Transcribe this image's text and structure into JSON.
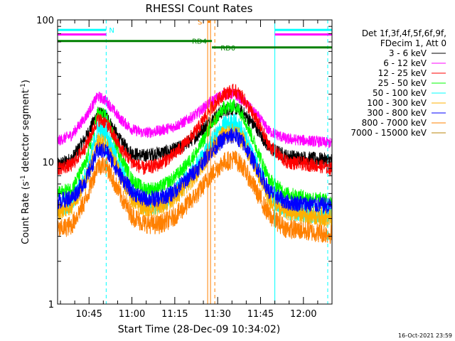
{
  "chart_data": {
    "type": "line",
    "title": "RHESSI Count Rates",
    "xlabel": "Start Time (28-Dec-09 10:34:02)",
    "ylabel_main": "Count Rate (s",
    "ylabel_sup1": "-1",
    "ylabel_mid": " detector segment",
    "ylabel_sup2": "-1",
    "ylabel_end": ")",
    "y_scale": "log",
    "ylim": [
      1,
      100
    ],
    "xlim_minutes": [
      0,
      96
    ],
    "x_ticks": [
      {
        "label": "10:45",
        "minute": 11
      },
      {
        "label": "11:00",
        "minute": 26
      },
      {
        "label": "11:15",
        "minute": 41
      },
      {
        "label": "11:30",
        "minute": 56
      },
      {
        "label": "11:45",
        "minute": 71
      },
      {
        "label": "12:00",
        "minute": 86
      }
    ],
    "y_ticks": [
      {
        "label": "1",
        "value": 1
      },
      {
        "label": "10",
        "value": 10
      },
      {
        "label": "100",
        "value": 100
      }
    ],
    "legend_header": [
      "Det 1f,3f,4f,5f,6f,9f,",
      "FDecim 1, Att 0"
    ],
    "series": [
      {
        "name": "3 - 6 keV",
        "color": "#000000",
        "noise": 0.05,
        "points": [
          [
            0,
            9.5
          ],
          [
            5,
            10.5
          ],
          [
            10,
            15
          ],
          [
            14,
            22
          ],
          [
            17,
            21
          ],
          [
            22,
            14
          ],
          [
            26,
            11.5
          ],
          [
            30,
            11
          ],
          [
            35,
            11.5
          ],
          [
            40,
            12
          ],
          [
            44,
            13
          ],
          [
            49,
            15.5
          ],
          [
            53,
            19
          ],
          [
            58,
            23
          ],
          [
            62,
            24
          ],
          [
            65,
            22
          ],
          [
            70,
            17
          ],
          [
            74,
            12.5
          ],
          [
            80,
            11
          ],
          [
            90,
            10.5
          ],
          [
            96,
            10.3
          ]
        ]
      },
      {
        "name": "6 - 12 keV",
        "color": "#ff00ff",
        "noise": 0.04,
        "points": [
          [
            0,
            14
          ],
          [
            5,
            15.5
          ],
          [
            10,
            21
          ],
          [
            14,
            29
          ],
          [
            17,
            27
          ],
          [
            22,
            20
          ],
          [
            26,
            17
          ],
          [
            30,
            16
          ],
          [
            35,
            16.5
          ],
          [
            40,
            17.5
          ],
          [
            44,
            19
          ],
          [
            49,
            22
          ],
          [
            53,
            26
          ],
          [
            58,
            30
          ],
          [
            62,
            30
          ],
          [
            65,
            27
          ],
          [
            70,
            21
          ],
          [
            74,
            16.5
          ],
          [
            80,
            14.5
          ],
          [
            90,
            14
          ],
          [
            96,
            13.5
          ]
        ]
      },
      {
        "name": "12 - 25 keV",
        "color": "#ff0000",
        "noise": 0.05,
        "points": [
          [
            0,
            9
          ],
          [
            5,
            9.5
          ],
          [
            10,
            13
          ],
          [
            14,
            20
          ],
          [
            17,
            19
          ],
          [
            22,
            12.5
          ],
          [
            26,
            10
          ],
          [
            30,
            9
          ],
          [
            35,
            9.5
          ],
          [
            40,
            11
          ],
          [
            44,
            13
          ],
          [
            49,
            17
          ],
          [
            53,
            23
          ],
          [
            58,
            30
          ],
          [
            62,
            32
          ],
          [
            65,
            28
          ],
          [
            70,
            19
          ],
          [
            74,
            13
          ],
          [
            80,
            10
          ],
          [
            90,
            9.5
          ],
          [
            96,
            9
          ]
        ]
      },
      {
        "name": "25 - 50 keV",
        "color": "#00ff00",
        "noise": 0.05,
        "points": [
          [
            0,
            6
          ],
          [
            5,
            6.5
          ],
          [
            10,
            10
          ],
          [
            14,
            22
          ],
          [
            17,
            21
          ],
          [
            22,
            11
          ],
          [
            26,
            7.5
          ],
          [
            30,
            6.5
          ],
          [
            35,
            6.5
          ],
          [
            40,
            7.5
          ],
          [
            44,
            9
          ],
          [
            49,
            12
          ],
          [
            53,
            17
          ],
          [
            58,
            24
          ],
          [
            62,
            25
          ],
          [
            65,
            21
          ],
          [
            70,
            12
          ],
          [
            74,
            7.5
          ],
          [
            80,
            6
          ],
          [
            90,
            5.5
          ],
          [
            96,
            5.3
          ]
        ]
      },
      {
        "name": "50 - 100 keV",
        "color": "#00ffff",
        "noise": 0.07,
        "points": [
          [
            0,
            4.8
          ],
          [
            5,
            5.2
          ],
          [
            10,
            8
          ],
          [
            14,
            17
          ],
          [
            17,
            16
          ],
          [
            22,
            9
          ],
          [
            26,
            6
          ],
          [
            30,
            5
          ],
          [
            35,
            5
          ],
          [
            40,
            5.8
          ],
          [
            44,
            7
          ],
          [
            49,
            9.5
          ],
          [
            53,
            13
          ],
          [
            58,
            18
          ],
          [
            62,
            19
          ],
          [
            65,
            16
          ],
          [
            70,
            9.5
          ],
          [
            74,
            6
          ],
          [
            80,
            4.6
          ],
          [
            90,
            4.3
          ],
          [
            96,
            4.2
          ]
        ]
      },
      {
        "name": "100 - 300 keV",
        "color": "#ffb000",
        "noise": 0.07,
        "points": [
          [
            0,
            4.5
          ],
          [
            5,
            5
          ],
          [
            10,
            7.5
          ],
          [
            14,
            14
          ],
          [
            17,
            13
          ],
          [
            22,
            8
          ],
          [
            26,
            5.5
          ],
          [
            30,
            4.8
          ],
          [
            35,
            4.8
          ],
          [
            40,
            5.5
          ],
          [
            44,
            6.5
          ],
          [
            49,
            8.5
          ],
          [
            53,
            11.5
          ],
          [
            58,
            15.5
          ],
          [
            62,
            16
          ],
          [
            65,
            14
          ],
          [
            70,
            8.5
          ],
          [
            74,
            5.5
          ],
          [
            80,
            4.5
          ],
          [
            90,
            4.2
          ],
          [
            96,
            4
          ]
        ]
      },
      {
        "name": "300 - 800 keV",
        "color": "#0000ff",
        "noise": 0.06,
        "points": [
          [
            0,
            5.3
          ],
          [
            5,
            5.6
          ],
          [
            10,
            7.5
          ],
          [
            14,
            12
          ],
          [
            17,
            12
          ],
          [
            22,
            8
          ],
          [
            26,
            6.2
          ],
          [
            30,
            5.5
          ],
          [
            35,
            5.5
          ],
          [
            40,
            6
          ],
          [
            44,
            7.2
          ],
          [
            49,
            9
          ],
          [
            53,
            11.5
          ],
          [
            58,
            14.5
          ],
          [
            62,
            15.5
          ],
          [
            65,
            13.5
          ],
          [
            70,
            9
          ],
          [
            74,
            6.2
          ],
          [
            80,
            5.2
          ],
          [
            90,
            5
          ],
          [
            96,
            4.9
          ]
        ]
      },
      {
        "name": "800 - 7000 keV",
        "color": "#ff8000",
        "noise": 0.07,
        "points": [
          [
            0,
            3.3
          ],
          [
            5,
            3.6
          ],
          [
            10,
            5.5
          ],
          [
            14,
            9.5
          ],
          [
            17,
            9.5
          ],
          [
            22,
            5.8
          ],
          [
            26,
            4.2
          ],
          [
            30,
            3.7
          ],
          [
            35,
            3.6
          ],
          [
            40,
            4
          ],
          [
            44,
            4.7
          ],
          [
            49,
            6
          ],
          [
            53,
            7.8
          ],
          [
            58,
            10
          ],
          [
            62,
            10.5
          ],
          [
            65,
            9.2
          ],
          [
            70,
            6
          ],
          [
            74,
            4.2
          ],
          [
            80,
            3.4
          ],
          [
            90,
            3.2
          ],
          [
            96,
            3.1
          ]
        ]
      },
      {
        "name": "7000 - 15000 keV",
        "color": "#b8860b",
        "noise": 0.05,
        "points": []
      }
    ],
    "annotations": {
      "states": [
        {
          "label": "N",
          "color": "#00ffff",
          "segments": [
            [
              0,
              17
            ],
            [
              76,
              96
            ]
          ],
          "value": 85,
          "label_at": 18
        },
        {
          "label": "S",
          "color": "#ff8000",
          "segments": [
            [
              52.5,
              53.5
            ]
          ],
          "value": 97,
          "label_at": 49
        },
        {
          "label": "RD4",
          "color": "#008000",
          "segments": [
            [
              0,
              54
            ]
          ],
          "value": 71,
          "label_at": 47
        },
        {
          "label": "RD0",
          "color": "#008000",
          "segments": [
            [
              54,
              96
            ]
          ],
          "value": 64,
          "label_at": 57
        }
      ],
      "vertical_lines": [
        {
          "minute": 17,
          "color": "#00ffff",
          "dashed": true
        },
        {
          "minute": 94.5,
          "color": "#00ffff",
          "dashed": true
        },
        {
          "minute": 52.5,
          "color": "#ff8000",
          "dashed": false
        },
        {
          "minute": 53.5,
          "color": "#ff8000",
          "dashed": false
        },
        {
          "minute": 55,
          "color": "#ff8000",
          "dashed": true
        },
        {
          "minute": 76,
          "color": "#00ffff",
          "dashed": false
        }
      ],
      "extra_lines": [
        {
          "color": "#ff00ff",
          "segments": [
            [
              0,
              17
            ],
            [
              76,
              96
            ]
          ],
          "value": 79
        }
      ]
    },
    "grid": false,
    "legend_position": "right"
  },
  "footer": {
    "timestamp": "16-Oct-2021 23:59"
  }
}
